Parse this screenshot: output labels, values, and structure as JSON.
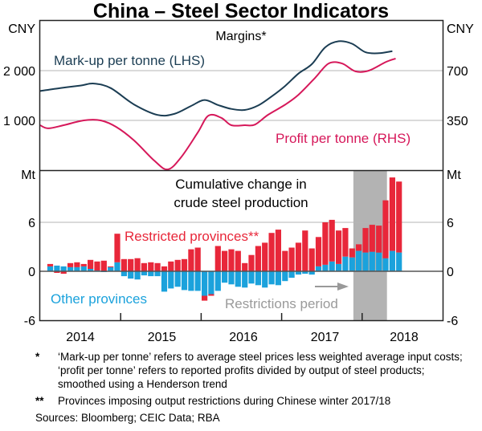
{
  "chart_data": [
    {
      "type": "line",
      "title": "China – Steel Sector Indicators",
      "subtitle": "Margins*",
      "left_unit": "CNY",
      "right_unit": "CNY",
      "left_ticks": [
        "1 000",
        "2 000"
      ],
      "left_tick_values": [
        1000,
        2000
      ],
      "right_ticks": [
        "350",
        "700"
      ],
      "right_tick_values": [
        350,
        700
      ],
      "left_ylim": [
        0,
        3000
      ],
      "right_ylim": [
        0,
        1050
      ],
      "grid": true,
      "x_unit": "month index from Jan 2014",
      "series": [
        {
          "name": "Mark-up per tonne (LHS)",
          "axis": "left",
          "color": "#1b3d53",
          "x": [
            -0.5,
            2.5,
            5.5,
            7.5,
            10,
            13.5,
            17,
            19.5,
            22,
            24,
            26,
            28,
            30,
            32,
            34,
            36,
            38,
            40,
            42,
            44,
            46,
            48,
            50,
            52
          ],
          "values": [
            1590,
            1650,
            1700,
            1740,
            1650,
            1320,
            1110,
            1130,
            1290,
            1410,
            1310,
            1230,
            1210,
            1300,
            1480,
            1690,
            1940,
            2130,
            2470,
            2590,
            2540,
            2370,
            2350,
            2390
          ]
        },
        {
          "name": "Profit per tonne (RHS)",
          "axis": "right",
          "color": "#d6185a",
          "x": [
            -0.5,
            0.7,
            3,
            6,
            8.5,
            10.8,
            13.5,
            16.5,
            18.5,
            20.5,
            23,
            24.6,
            26.5,
            28,
            30,
            31.5,
            33.5,
            36,
            38,
            40.5,
            42.5,
            44.5,
            46.5,
            48.5,
            51,
            52.5
          ],
          "values": [
            316,
            294,
            316,
            350,
            350,
            305,
            209,
            68,
            5,
            90,
            265,
            384,
            368,
            316,
            316,
            320,
            390,
            460,
            530,
            650,
            750,
            750,
            695,
            700,
            760,
            785
          ]
        }
      ],
      "annotations": [
        "Mark-up per tonne (LHS)",
        "Profit per tonne (RHS)"
      ]
    },
    {
      "type": "bar",
      "stacked": true,
      "subtitle": "Cumulative change in crude steel production",
      "left_unit": "Mt",
      "right_unit": "Mt",
      "yticks": [
        "-6",
        "0",
        "6"
      ],
      "ytick_values": [
        -6,
        0,
        6
      ],
      "ylim": [
        -6,
        12
      ],
      "xlabel": "",
      "x_ticks": [
        "2014",
        "2015",
        "2016",
        "2017",
        "2018"
      ],
      "xlim_months": [
        0,
        60
      ],
      "grid": true,
      "shaded_region": {
        "label": "Restrictions period",
        "start_month": 46.7,
        "end_month": 51.7
      },
      "series": [
        {
          "name": "Other provinces",
          "color": "#1ba2dc",
          "values": [
            0.0,
            0.6,
            0.7,
            0.6,
            0.5,
            0.5,
            0.6,
            0.3,
            0.1,
            -0.1,
            0.5,
            1.1,
            -0.6,
            -0.9,
            -1.0,
            -0.5,
            -0.6,
            -0.6,
            -2.5,
            -2.1,
            -1.9,
            -2.3,
            -2.4,
            -2.4,
            -3.0,
            -2.8,
            -2.4,
            -1.4,
            -1.6,
            -1.9,
            -2.0,
            -1.5,
            -1.7,
            -2.0,
            -1.6,
            -1.7,
            -1.2,
            -0.8,
            -0.4,
            -0.3,
            -0.4,
            0.6,
            0.8,
            1.2,
            0.9,
            1.8,
            1.7,
            2.5,
            2.3,
            2.4,
            2.3,
            1.6,
            2.5,
            2.3
          ]
        },
        {
          "name": "Restricted provinces**",
          "color": "#e8273a",
          "values": [
            0.0,
            0.3,
            -0.2,
            -0.3,
            0.5,
            0.6,
            0.3,
            1.1,
            1.1,
            1.3,
            0.1,
            3.5,
            1.5,
            1.5,
            1.6,
            1.0,
            1.1,
            1.0,
            0.6,
            1.2,
            1.4,
            1.5,
            2.7,
            2.9,
            -0.6,
            -0.2,
            3.1,
            2.5,
            2.7,
            2.5,
            1.0,
            2.0,
            3.1,
            3.5,
            4.7,
            5.1,
            2.5,
            2.9,
            3.5,
            5.0,
            2.8,
            3.6,
            5.2,
            5.1,
            4.1,
            3.5,
            1.1,
            0.8,
            3.0,
            3.3,
            3.3,
            7.1,
            9.0,
            8.7
          ]
        }
      ],
      "annotations": [
        "Restricted provinces**",
        "Other provinces",
        "Restrictions period"
      ]
    }
  ],
  "labels": {
    "title": "China – Steel Sector Indicators",
    "top_panel_title": "Margins*",
    "bottom_panel_title_1": "Cumulative change in",
    "bottom_panel_title_2": "crude steel production",
    "markup_label": "Mark-up per tonne (LHS)",
    "profit_label": "Profit per tonne (RHS)",
    "restricted_label": "Restricted provinces**",
    "other_label": "Other provinces",
    "period_label": "Restrictions period",
    "top_left_unit": "CNY",
    "top_right_unit": "CNY",
    "bottom_left_unit": "Mt",
    "bottom_right_unit": "Mt",
    "top_left_ticks": [
      "2 000",
      "1 000"
    ],
    "top_right_ticks": [
      "700",
      "350"
    ],
    "bottom_ticks": [
      "6",
      "0",
      "-6"
    ],
    "years": [
      "2014",
      "2015",
      "2016",
      "2017",
      "2018"
    ]
  },
  "footnotes": [
    {
      "mark": "*",
      "text": "‘Mark-up per tonne’ refers to average steel prices less weighted average input costs; ‘profit per tonne’ refers to reported profits divided by output of steel products; smoothed using a Henderson trend"
    },
    {
      "mark": "**",
      "text": "Provinces imposing output restrictions during Chinese winter 2017/18"
    }
  ],
  "sources": "Sources: Bloomberg; CEIC Data; RBA"
}
